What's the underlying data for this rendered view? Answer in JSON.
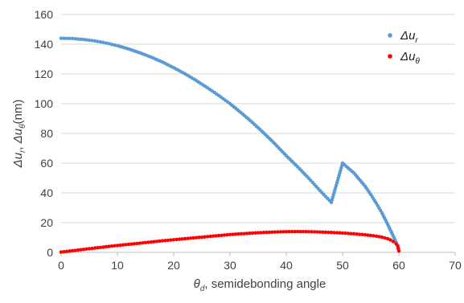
{
  "chart_data": {
    "type": "scatter",
    "xlabel_symbol": "θ",
    "xlabel_sub": "d",
    "xlabel_rest": ", semidebonding angle",
    "ylabel_parts": {
      "a": "Δu",
      "a_sub": "r",
      "sep": ", ",
      "b": "Δu",
      "b_sub": "θ",
      "c": "(nm)"
    },
    "xlim": [
      0,
      70
    ],
    "ylim": [
      0,
      160
    ],
    "x_ticks": [
      0,
      10,
      20,
      30,
      40,
      50,
      60,
      70
    ],
    "y_ticks": [
      0,
      20,
      40,
      60,
      80,
      100,
      120,
      140,
      160
    ],
    "grid": "horizontal",
    "legend_position": "top-right",
    "series": [
      {
        "name": "Δu",
        "name_sub": "r",
        "color": "#5b9bd5",
        "x": [
          0,
          2,
          4,
          6,
          8,
          10,
          12,
          14,
          16,
          18,
          20,
          22,
          24,
          26,
          28,
          30,
          32,
          34,
          36,
          38,
          40,
          42,
          44,
          46,
          48,
          50,
          52,
          54,
          55,
          56,
          57,
          58,
          58.5,
          59,
          59.3,
          59.6,
          59.8,
          59.9,
          60
        ],
        "y": [
          144,
          143.8,
          143.2,
          142.2,
          140.8,
          139,
          136.8,
          134.2,
          131.3,
          128,
          124.2,
          120.1,
          115.6,
          110.7,
          105.5,
          100,
          93.8,
          87.3,
          80.3,
          72.9,
          65,
          57.6,
          49.8,
          41.5,
          33.6,
          60,
          53.5,
          44.5,
          39,
          33,
          26.5,
          19,
          15,
          11,
          8.5,
          6,
          4.5,
          3,
          1
        ]
      },
      {
        "name": "Δu",
        "name_sub": "θ",
        "color": "#ff0000",
        "x": [
          0,
          2,
          4,
          6,
          8,
          10,
          12,
          14,
          16,
          18,
          20,
          22,
          24,
          26,
          28,
          30,
          32,
          34,
          36,
          38,
          40,
          42,
          44,
          46,
          48,
          50,
          52,
          54,
          55,
          56,
          57,
          58,
          58.5,
          59,
          59.5,
          59.8,
          60
        ],
        "y": [
          0.2,
          1.1,
          2.0,
          2.9,
          3.8,
          4.6,
          5.4,
          6.2,
          7.0,
          7.8,
          8.5,
          9.2,
          9.9,
          10.6,
          11.3,
          12.0,
          12.5,
          13.0,
          13.4,
          13.7,
          13.9,
          14.0,
          13.9,
          13.7,
          13.4,
          13.0,
          12.5,
          11.8,
          11.4,
          10.9,
          10.2,
          9.2,
          8.4,
          7.3,
          5.8,
          4.2,
          1.0
        ]
      }
    ]
  }
}
